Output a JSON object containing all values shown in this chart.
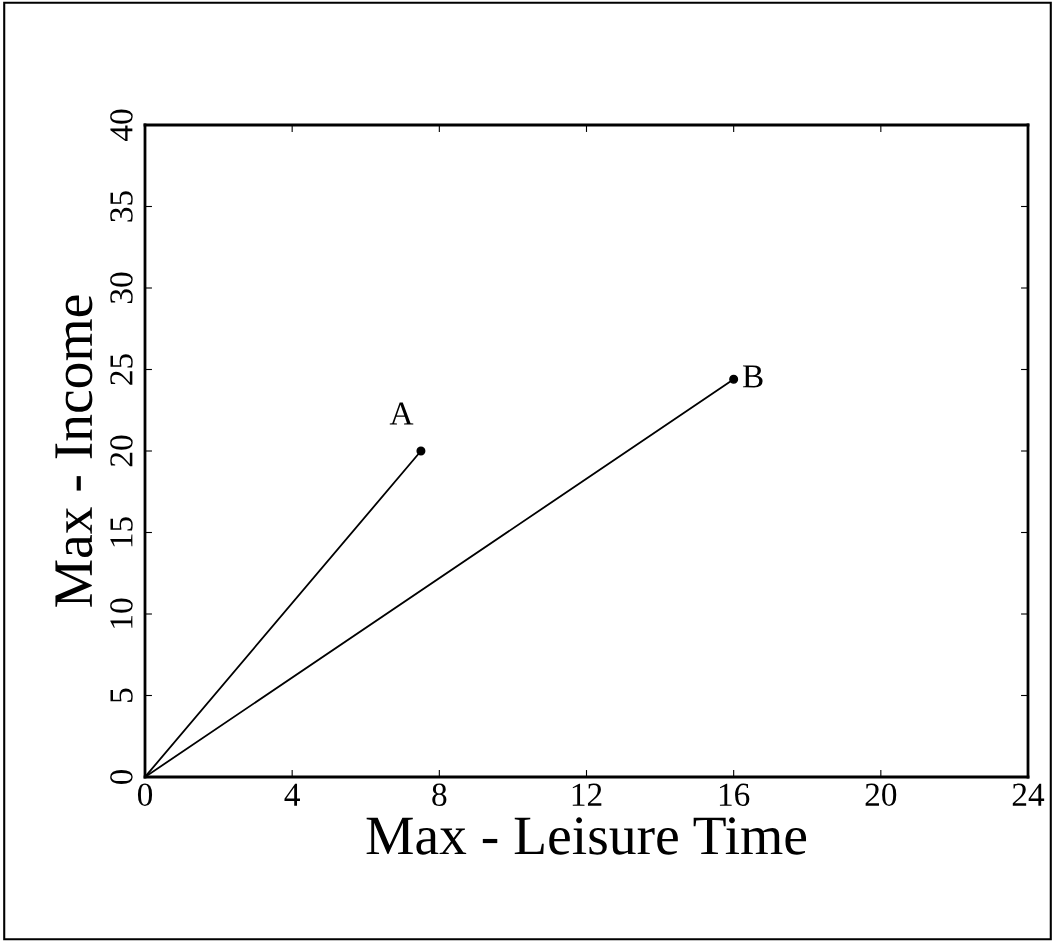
{
  "chart_data": {
    "type": "line",
    "xlabel": "Max - Leisure Time",
    "ylabel": "Max - Income",
    "series": [
      {
        "color": "#000000",
        "x": [
          0,
          7.5
        ],
        "values": [
          0,
          20
        ],
        "marker": "none"
      },
      {
        "color": "#000000",
        "x": [
          0,
          16
        ],
        "values": [
          0,
          24.4
        ],
        "marker": "none"
      },
      {
        "type": "scatter",
        "color": "#000000",
        "x": [
          7.5,
          16
        ],
        "values": [
          20,
          24.4
        ],
        "marker": "circle"
      }
    ],
    "annotations": [
      {
        "text": "A",
        "x": 7.5,
        "y": 20
      },
      {
        "text": "B",
        "x": 16,
        "y": 24.4
      }
    ],
    "xlim": [
      0,
      24
    ],
    "xticks": [
      0,
      4,
      8,
      12,
      16,
      20,
      24
    ],
    "ylim": [
      0,
      40
    ],
    "yticks": [
      0,
      5,
      10,
      15,
      20,
      25,
      30,
      35,
      40
    ],
    "grid": false,
    "legend": false
  }
}
